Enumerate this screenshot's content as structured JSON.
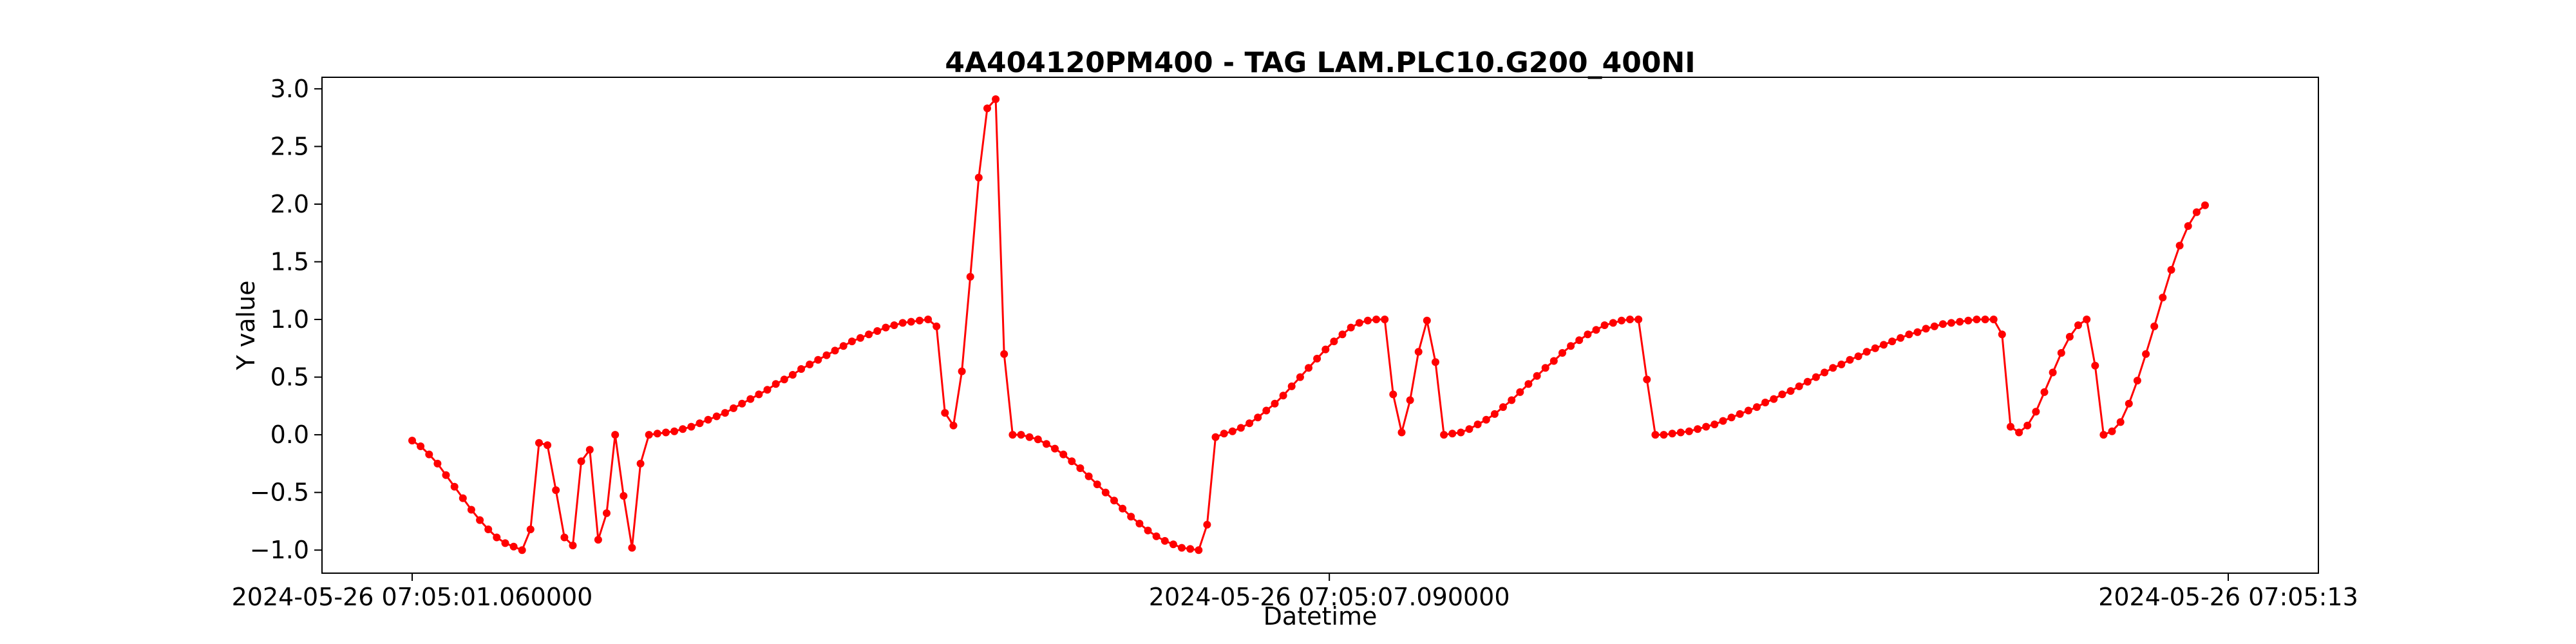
{
  "chart_data": {
    "type": "line",
    "title": "4A404120PM400 - TAG LAM.PLC10.G200_400NI",
    "xlabel": "Datetime",
    "ylabel": "Y value",
    "ylim": [
      -1.2,
      3.1
    ],
    "yticks": [
      -1.0,
      -0.5,
      0.0,
      0.5,
      1.0,
      1.5,
      2.0,
      2.5,
      3.0
    ],
    "ytick_labels": [
      "−1.0",
      "−0.5",
      "0.0",
      "0.5",
      "1.0",
      "1.5",
      "2.0",
      "2.5",
      "3.0"
    ],
    "x_start": "2024-05-26 07:05:01.060000",
    "x_end": "2024-05-26 07:05:13",
    "xticks": [
      {
        "time": "2024-05-26 07:05:01.060000",
        "label": "2024-05-26 07:05:01.060000"
      },
      {
        "time": "2024-05-26 07:05:07.090000",
        "label": "2024-05-26 07:05:07.090000"
      },
      {
        "time": "2024-05-26 07:05:13",
        "label": "2024-05-26 07:05:13"
      }
    ],
    "grid": false,
    "line_color": "#ff0000",
    "series": [
      {
        "values": [
          -0.05,
          -0.1,
          -0.17,
          -0.25,
          -0.35,
          -0.45,
          -0.55,
          -0.65,
          -0.74,
          -0.82,
          -0.89,
          -0.94,
          -0.97,
          -1.0,
          -0.82,
          -0.07,
          -0.09,
          -0.48,
          -0.89,
          -0.96,
          -0.23,
          -0.13,
          -0.91,
          -0.68,
          0.0,
          -0.53,
          -0.98,
          -0.25,
          0.0,
          0.01,
          0.02,
          0.03,
          0.05,
          0.07,
          0.1,
          0.13,
          0.16,
          0.19,
          0.23,
          0.27,
          0.31,
          0.35,
          0.39,
          0.44,
          0.48,
          0.52,
          0.57,
          0.61,
          0.65,
          0.69,
          0.73,
          0.77,
          0.81,
          0.84,
          0.87,
          0.9,
          0.93,
          0.95,
          0.97,
          0.98,
          0.99,
          1.0,
          0.94,
          0.19,
          0.08,
          0.55,
          1.37,
          2.23,
          2.83,
          2.91,
          0.7,
          0.0,
          0.0,
          -0.02,
          -0.04,
          -0.08,
          -0.12,
          -0.17,
          -0.23,
          -0.29,
          -0.36,
          -0.43,
          -0.5,
          -0.57,
          -0.64,
          -0.71,
          -0.77,
          -0.83,
          -0.88,
          -0.92,
          -0.95,
          -0.98,
          -0.99,
          -1.0,
          -0.78,
          -0.02,
          0.01,
          0.03,
          0.06,
          0.1,
          0.15,
          0.21,
          0.27,
          0.34,
          0.42,
          0.5,
          0.58,
          0.66,
          0.74,
          0.81,
          0.87,
          0.93,
          0.97,
          0.99,
          1.0,
          1.0,
          0.35,
          0.02,
          0.3,
          0.72,
          0.99,
          0.63,
          0.0,
          0.01,
          0.02,
          0.05,
          0.09,
          0.13,
          0.18,
          0.24,
          0.3,
          0.37,
          0.44,
          0.51,
          0.58,
          0.64,
          0.71,
          0.77,
          0.82,
          0.87,
          0.91,
          0.95,
          0.97,
          0.99,
          1.0,
          1.0,
          0.48,
          0.0,
          0.0,
          0.01,
          0.02,
          0.03,
          0.05,
          0.07,
          0.09,
          0.12,
          0.15,
          0.18,
          0.21,
          0.24,
          0.28,
          0.31,
          0.35,
          0.38,
          0.42,
          0.46,
          0.5,
          0.54,
          0.58,
          0.61,
          0.65,
          0.68,
          0.72,
          0.75,
          0.78,
          0.81,
          0.84,
          0.87,
          0.89,
          0.92,
          0.94,
          0.96,
          0.97,
          0.98,
          0.99,
          1.0,
          1.0,
          1.0,
          0.87,
          0.07,
          0.02,
          0.08,
          0.2,
          0.37,
          0.54,
          0.71,
          0.85,
          0.95,
          1.0,
          0.6,
          0.0,
          0.03,
          0.11,
          0.27,
          0.47,
          0.7,
          0.94,
          1.19,
          1.43,
          1.64,
          1.81,
          1.93,
          1.99
        ]
      }
    ]
  }
}
